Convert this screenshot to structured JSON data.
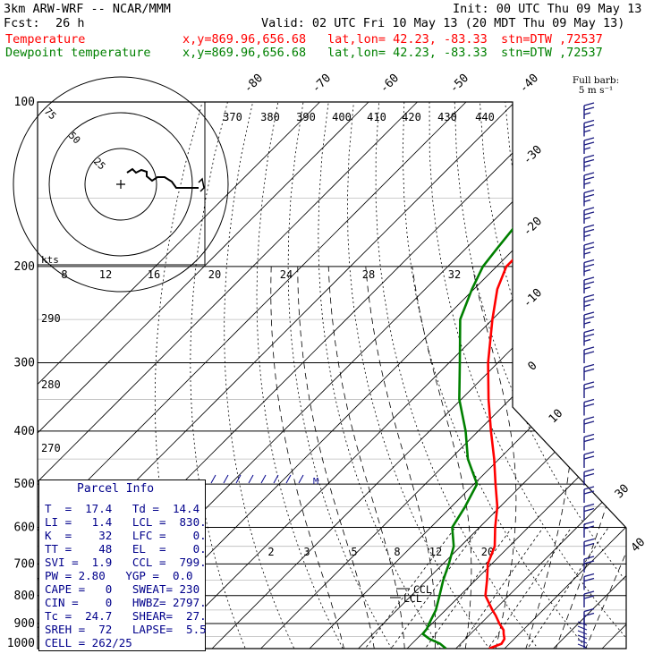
{
  "header": {
    "model": "3km ARW-WRF -- NCAR/MMM",
    "init": "Init: 00 UTC Thu 09 May 13",
    "fcst_label": "Fcst:",
    "fcst_value": "26 h",
    "valid": "Valid: 02 UTC Fri 10 May 13 (20 MDT Thu 09 May 13)",
    "temp_label": "Temperature",
    "dew_label": "Dewpoint temperature",
    "xy": "x,y=869.96,656.68",
    "latlon": "lat,lon= 42.23, -83.33",
    "stn": "stn=DTW ,72537"
  },
  "colors": {
    "temperature": "#ff0000",
    "dewpoint": "#008000",
    "grid": "#000000",
    "parcel_text": "#00008b",
    "wind_barb": "#1a1a80"
  },
  "chart_data": {
    "type": "line",
    "title": "Skew-T log-P sounding",
    "ylabel": "Pressure (hPa)",
    "xlabel": "Temperature (C)",
    "ylim": [
      1000,
      100
    ],
    "pressure_ticks": [
      100,
      200,
      300,
      400,
      500,
      600,
      700,
      800,
      900,
      1000
    ],
    "isotherm_labels": [
      "-80",
      "-70",
      "-60",
      "-50",
      "-40",
      "-30",
      "-20",
      "-10",
      "0",
      "10",
      "30",
      "40"
    ],
    "theta_e_labels": [
      "370",
      "380",
      "390",
      "400",
      "410",
      "420",
      "430",
      "440"
    ],
    "theta_labels": [
      "290",
      "280",
      "270"
    ],
    "mixing_ratio_labels_upper": [
      "8",
      "12",
      "16",
      "20",
      "24",
      "28",
      "32"
    ],
    "mixing_ratio_labels_lower": [
      "2",
      "3",
      "5",
      "8",
      "12",
      "20"
    ],
    "lcl_labels": [
      "LCL",
      "CCL"
    ],
    "max_wind_marker": "M",
    "hodograph": {
      "units": "kts",
      "ring_labels": [
        "25",
        "50",
        "75"
      ]
    },
    "barb_legend": {
      "title": "Full barb:",
      "value": "5 m s⁻¹"
    },
    "series": [
      {
        "name": "Temperature",
        "points": [
          [
            1000,
            16.8
          ],
          [
            980,
            18.4
          ],
          [
            960,
            18.0
          ],
          [
            940,
            16.8
          ],
          [
            925,
            16.0
          ],
          [
            900,
            13.8
          ],
          [
            870,
            11.4
          ],
          [
            850,
            9.6
          ],
          [
            800,
            5.2
          ],
          [
            750,
            2.4
          ],
          [
            700,
            -0.8
          ],
          [
            650,
            -3.0
          ],
          [
            600,
            -6.8
          ],
          [
            550,
            -10.6
          ],
          [
            500,
            -15.6
          ],
          [
            450,
            -21.0
          ],
          [
            400,
            -27.4
          ],
          [
            350,
            -34.4
          ],
          [
            300,
            -42.0
          ],
          [
            250,
            -50.0
          ],
          [
            220,
            -55.2
          ],
          [
            200,
            -58.0
          ],
          [
            185,
            -58.0
          ],
          [
            175,
            -56.6
          ],
          [
            160,
            -53.6
          ],
          [
            145,
            -49.4
          ],
          [
            130,
            -48.8
          ],
          [
            115,
            -47.4
          ],
          [
            100,
            -46.0
          ]
        ]
      },
      {
        "name": "Dewpoint",
        "points": [
          [
            1000,
            8.0
          ],
          [
            980,
            5.8
          ],
          [
            960,
            2.6
          ],
          [
            940,
            0.2
          ],
          [
            920,
            0.0
          ],
          [
            900,
            -0.6
          ],
          [
            850,
            -2.0
          ],
          [
            800,
            -4.2
          ],
          [
            750,
            -6.6
          ],
          [
            700,
            -8.8
          ],
          [
            650,
            -11.4
          ],
          [
            600,
            -15.6
          ],
          [
            550,
            -17.2
          ],
          [
            500,
            -19.4
          ],
          [
            450,
            -26.4
          ],
          [
            400,
            -32.6
          ],
          [
            350,
            -40.4
          ],
          [
            300,
            -47.8
          ],
          [
            250,
            -56.6
          ],
          [
            220,
            -60.4
          ],
          [
            200,
            -62.8
          ],
          [
            185,
            -63.6
          ],
          [
            170,
            -64.4
          ],
          [
            160,
            -64.0
          ],
          [
            145,
            -62.8
          ],
          [
            130,
            -63.0
          ],
          [
            115,
            -68.0
          ],
          [
            100,
            -71.6
          ]
        ]
      }
    ]
  },
  "parcel": {
    "title": "Parcel Info",
    "rows": [
      {
        "a": "T  =  17.4",
        "b": "Td =  14.4"
      },
      {
        "a": "LI =   1.4",
        "b": "LCL =  830."
      },
      {
        "a": "K  =    32",
        "b": "LFC =    0."
      },
      {
        "a": "TT =    48",
        "b": "EL  =    0."
      },
      {
        "a": "SVI =  1.9",
        "b": "CCL =  799."
      },
      {
        "a": "PW = 2.80",
        "b": "YGP =  0.0"
      },
      {
        "a": "CAPE =   0",
        "b": "SWEAT= 230"
      },
      {
        "a": "CIN =    0",
        "b": "HWBZ= 2797."
      },
      {
        "a": "Tc =  24.7",
        "b": "SHEAR=  27."
      },
      {
        "a": "SREH =  72",
        "b": "LAPSE=  5.5"
      },
      {
        "a": "CELL = 262/25",
        "b": ""
      }
    ]
  }
}
